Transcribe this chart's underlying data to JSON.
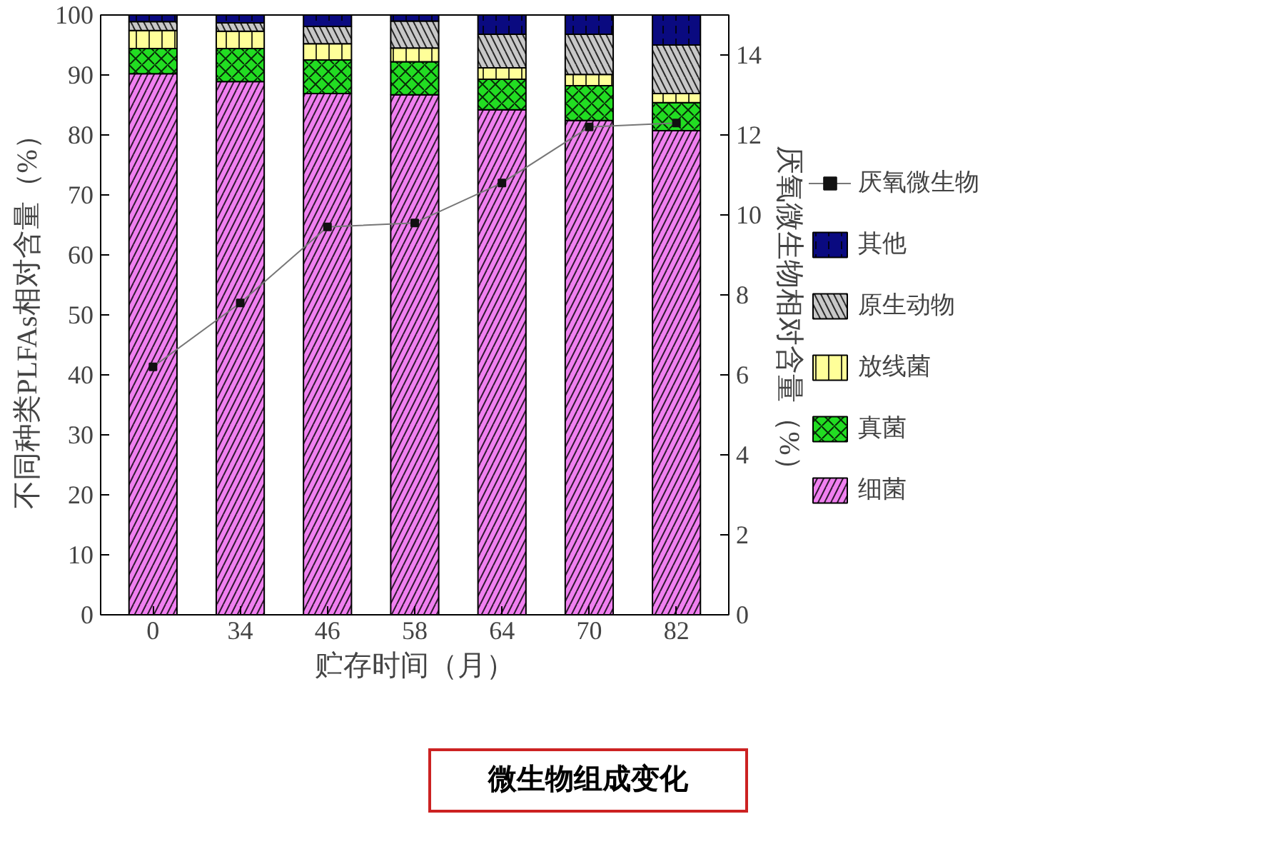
{
  "chart_data": {
    "type": "bar",
    "stacked": true,
    "categories": [
      "0",
      "34",
      "46",
      "58",
      "64",
      "70",
      "82"
    ],
    "xlabel": "贮存时间（月）",
    "ylabel": "不同种类PLFAs相对含量（%）",
    "y2label": "厌氧微生物相对含量（%）",
    "ylim": [
      0,
      100
    ],
    "yticks": [
      0,
      10,
      20,
      30,
      40,
      50,
      60,
      70,
      80,
      90,
      100
    ],
    "y2lim": [
      0,
      15
    ],
    "y2ticks": [
      0,
      2,
      4,
      6,
      8,
      10,
      12,
      14
    ],
    "series": [
      {
        "name": "细菌",
        "color": "#f080f0",
        "values": [
          90.2,
          88.9,
          86.9,
          86.7,
          84.2,
          82.4,
          80.7
        ]
      },
      {
        "name": "真菌",
        "color": "#22dd22",
        "values": [
          4.2,
          5.5,
          5.6,
          5.5,
          5.1,
          5.8,
          4.7
        ]
      },
      {
        "name": "放线菌",
        "color": "#ffff99",
        "values": [
          3.0,
          2.9,
          2.7,
          2.3,
          1.9,
          1.9,
          1.5
        ]
      },
      {
        "name": "原生动物",
        "color": "#c8c8c8",
        "values": [
          1.5,
          1.4,
          2.9,
          4.5,
          5.6,
          6.7,
          8.1
        ]
      },
      {
        "name": "其他",
        "color": "#0a0a80",
        "values": [
          1.1,
          1.3,
          1.9,
          1.0,
          3.2,
          3.2,
          5.0
        ]
      },
      {
        "name": "厌氧微生物",
        "type": "line",
        "axis": "y2",
        "marker": "square",
        "color": "#111111",
        "values": [
          6.2,
          7.8,
          9.7,
          9.8,
          10.8,
          12.2,
          12.3
        ]
      }
    ],
    "annotations": [
      "微生物组成变化"
    ],
    "grid": false,
    "legend": "right"
  }
}
